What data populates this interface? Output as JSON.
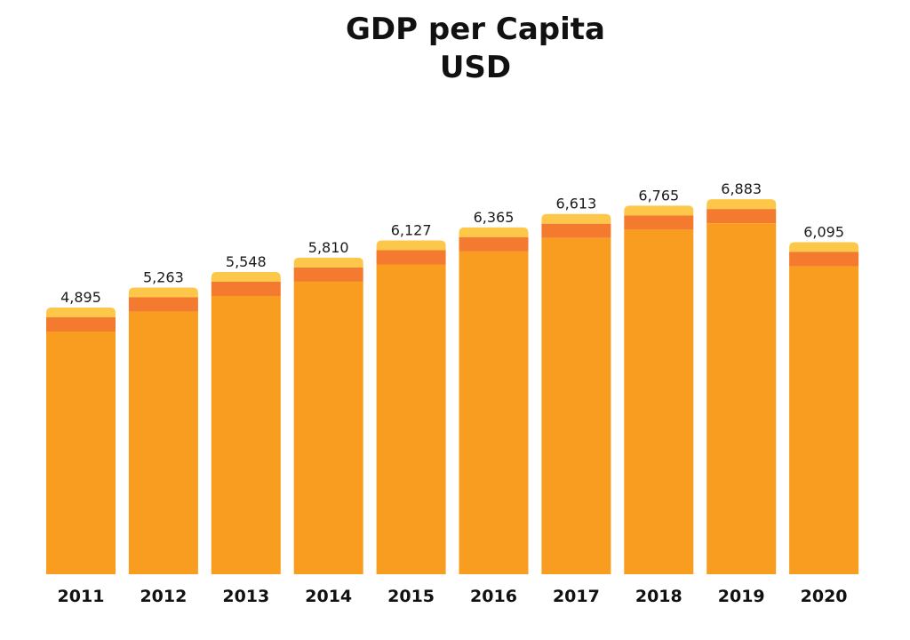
{
  "chart_data": {
    "type": "bar",
    "title": "GDP per Capita",
    "subtitle": "USD",
    "categories": [
      "2011",
      "2012",
      "2013",
      "2014",
      "2015",
      "2016",
      "2017",
      "2018",
      "2019",
      "2020"
    ],
    "values": [
      4895,
      5263,
      5548,
      5810,
      6127,
      6365,
      6613,
      6765,
      6883,
      6095
    ],
    "value_labels": [
      "4,895",
      "5,263",
      "5,548",
      "5,810",
      "6,127",
      "6,365",
      "6,613",
      "6,765",
      "6,883",
      "6,095"
    ],
    "xlabel": "",
    "ylabel": "",
    "ylim": [
      0,
      7000
    ],
    "grid": false,
    "legend": "none",
    "colors": {
      "bar": "#F99D20",
      "bar_band": "#F47A30",
      "bar_cap": "#FDC74A"
    }
  }
}
